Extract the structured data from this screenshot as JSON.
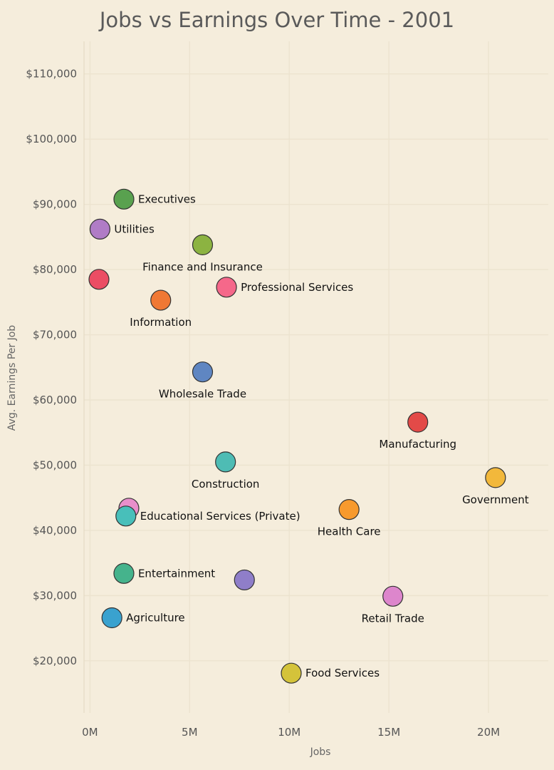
{
  "chart_data": {
    "type": "scatter",
    "title": "Jobs vs Earnings Over Time - 2001",
    "xlabel": "Jobs",
    "ylabel": "Avg. Earnings Per Job",
    "xlim": [
      -300000,
      23000000
    ],
    "ylim": [
      12000,
      115000
    ],
    "x_ticks": [
      {
        "value": 0,
        "label": "0M"
      },
      {
        "value": 5000000,
        "label": "5M"
      },
      {
        "value": 10000000,
        "label": "10M"
      },
      {
        "value": 15000000,
        "label": "15M"
      },
      {
        "value": 20000000,
        "label": "20M"
      }
    ],
    "y_ticks": [
      {
        "value": 20000,
        "label": "$20,000"
      },
      {
        "value": 30000,
        "label": "$30,000"
      },
      {
        "value": 40000,
        "label": "$40,000"
      },
      {
        "value": 50000,
        "label": "$50,000"
      },
      {
        "value": 60000,
        "label": "$60,000"
      },
      {
        "value": 70000,
        "label": "$70,000"
      },
      {
        "value": 80000,
        "label": "$80,000"
      },
      {
        "value": 90000,
        "label": "$90,000"
      },
      {
        "value": 100000,
        "label": "$100,000"
      },
      {
        "value": 110000,
        "label": "$110,000"
      }
    ],
    "grid": true,
    "points": [
      {
        "label": "Executives",
        "x": 1700000,
        "y": 90800,
        "color": "#59a14f",
        "label_pos": "right"
      },
      {
        "label": "Utilities",
        "x": 500000,
        "y": 86200,
        "color": "#b07cc6",
        "label_pos": "right"
      },
      {
        "label": "Finance and Insurance",
        "x": 5650000,
        "y": 83800,
        "color": "#8cb341",
        "label_pos": "below"
      },
      {
        "label": "",
        "x": 450000,
        "y": 78500,
        "color": "#eb4d64",
        "label_pos": "none"
      },
      {
        "label": "Professional Services",
        "x": 6850000,
        "y": 77300,
        "color": "#f5688a",
        "label_pos": "right"
      },
      {
        "label": "Information",
        "x": 3550000,
        "y": 75300,
        "color": "#f07834",
        "label_pos": "below"
      },
      {
        "label": "Wholesale Trade",
        "x": 5650000,
        "y": 64300,
        "color": "#5f86c2",
        "label_pos": "below"
      },
      {
        "label": "Manufacturing",
        "x": 16450000,
        "y": 56600,
        "color": "#e34a48",
        "label_pos": "below"
      },
      {
        "label": "Construction",
        "x": 6800000,
        "y": 50500,
        "color": "#4ebcb4",
        "label_pos": "below"
      },
      {
        "label": "Government",
        "x": 20350000,
        "y": 48100,
        "color": "#f2b83b",
        "label_pos": "below"
      },
      {
        "label": "",
        "x": 1950000,
        "y": 43400,
        "color": "#e88fcb",
        "label_pos": "none"
      },
      {
        "label": "Educational Services (Private)",
        "x": 1800000,
        "y": 42200,
        "color": "#48bfba",
        "label_pos": "right"
      },
      {
        "label": "Health Care",
        "x": 13000000,
        "y": 43200,
        "color": "#f79a2e",
        "label_pos": "below"
      },
      {
        "label": "Entertainment",
        "x": 1700000,
        "y": 33400,
        "color": "#45b38c",
        "label_pos": "right"
      },
      {
        "label": "",
        "x": 7750000,
        "y": 32400,
        "color": "#8f7ec9",
        "label_pos": "none"
      },
      {
        "label": "Retail Trade",
        "x": 15200000,
        "y": 29900,
        "color": "#dd86cc",
        "label_pos": "below"
      },
      {
        "label": "Agriculture",
        "x": 1100000,
        "y": 26600,
        "color": "#3aa2cf",
        "label_pos": "right"
      },
      {
        "label": "Food Services",
        "x": 10100000,
        "y": 18100,
        "color": "#d4c33a",
        "label_pos": "right"
      }
    ]
  }
}
